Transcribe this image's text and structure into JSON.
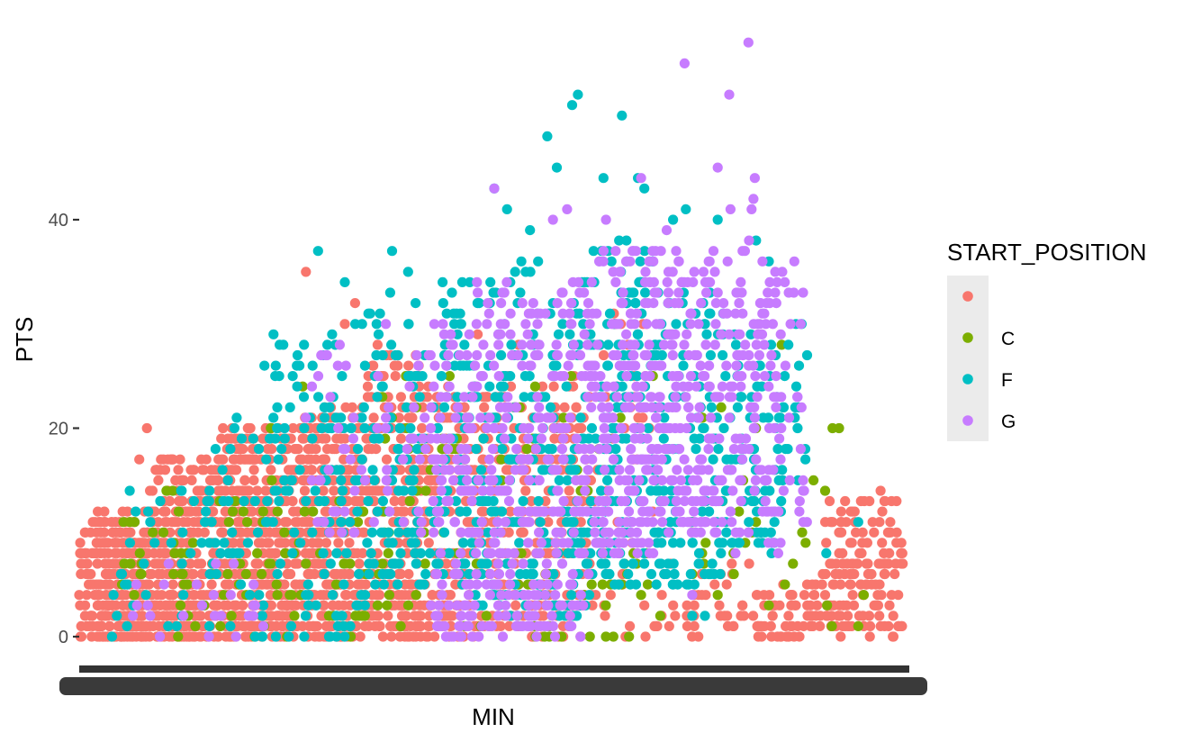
{
  "chart_data": {
    "type": "scatter",
    "xlabel": "MIN",
    "ylabel": "PTS",
    "x_axis_note": "categorical axis; overlapping tick labels render as a solid dark band",
    "y_ticks": [
      0,
      20,
      40
    ],
    "ylim": [
      -1,
      57
    ],
    "grid": false,
    "legend": {
      "title": "START_POSITION",
      "placement": "right",
      "entries": [
        {
          "label": "",
          "color": "#F8766D"
        },
        {
          "label": "C",
          "color": "#7CAE00"
        },
        {
          "label": "F",
          "color": "#00BFC4"
        },
        {
          "label": "G",
          "color": "#C77CFF"
        }
      ]
    },
    "series": [
      {
        "name": "",
        "color": "#F8766D",
        "clusters": [
          {
            "x": [
              0,
              10
            ],
            "y": [
              0,
              12
            ],
            "n": 280
          },
          {
            "x": [
              10,
              22
            ],
            "y": [
              0,
              17
            ],
            "n": 320
          },
          {
            "x": [
              22,
              35
            ],
            "y": [
              0,
              20
            ],
            "n": 420
          },
          {
            "x": [
              35,
              45
            ],
            "y": [
              0,
              22
            ],
            "n": 320
          },
          {
            "x": [
              45,
              54
            ],
            "y": [
              0,
              28
            ],
            "n": 220
          },
          {
            "x": [
              54,
              62
            ],
            "y": [
              0,
              24
            ],
            "n": 150
          },
          {
            "x": [
              62,
              72
            ],
            "y": [
              0,
              25
            ],
            "n": 140
          },
          {
            "x": [
              72,
              80
            ],
            "y": [
              0,
              25
            ],
            "n": 110
          },
          {
            "x": [
              80,
              91
            ],
            "y": [
              0,
              32
            ],
            "n": 50
          },
          {
            "x": [
              91,
              106
            ],
            "y": [
              0,
              7
            ],
            "n": 40
          },
          {
            "x": [
              106,
              116
            ],
            "y": [
              0,
              5
            ],
            "n": 60
          },
          {
            "x": [
              116,
              129
            ],
            "y": [
              0,
              13
            ],
            "n": 150
          }
        ],
        "points": [
          [
            10.6,
            20
          ],
          [
            9.4,
            17
          ],
          [
            35.5,
            35
          ],
          [
            43.2,
            32
          ],
          [
            41.6,
            30
          ],
          [
            62.4,
            29
          ],
          [
            74.5,
            16
          ],
          [
            74.0,
            14
          ],
          [
            69.6,
            2
          ],
          [
            68.8,
            28
          ],
          [
            119.0,
            10
          ],
          [
            125.5,
            14
          ],
          [
            128.0,
            13
          ],
          [
            122.7,
            10
          ],
          [
            121.0,
            9
          ]
        ]
      },
      {
        "name": "C",
        "color": "#7CAE00",
        "clusters": [
          {
            "x": [
              5,
              45
            ],
            "y": [
              0,
              15
            ],
            "n": 90
          },
          {
            "x": [
              45,
              90
            ],
            "y": [
              0,
              25
            ],
            "n": 100
          },
          {
            "x": [
              95,
              106
            ],
            "y": [
              5,
              22
            ],
            "n": 20
          },
          {
            "x": [
              110,
              128
            ],
            "y": [
              1,
              20
            ],
            "n": 10
          }
        ],
        "points": [
          [
            30.0,
            20
          ],
          [
            35.0,
            24
          ],
          [
            91.0,
            2
          ],
          [
            100.0,
            4
          ],
          [
            110.0,
            28
          ],
          [
            108.0,
            3
          ],
          [
            119.0,
            20
          ],
          [
            122.0,
            1
          ],
          [
            88.0,
            4
          ],
          [
            58.0,
            25
          ]
        ]
      },
      {
        "name": "F",
        "color": "#00BFC4",
        "clusters": [
          {
            "x": [
              5,
              30
            ],
            "y": [
              0,
              15
            ],
            "n": 50
          },
          {
            "x": [
              20,
              30
            ],
            "y": [
              5,
              22
            ],
            "n": 30
          },
          {
            "x": [
              30,
              45
            ],
            "y": [
              0,
              30
            ],
            "n": 120
          },
          {
            "x": [
              45,
              62
            ],
            "y": [
              5,
              34
            ],
            "n": 180
          },
          {
            "x": [
              62,
              80
            ],
            "y": [
              2,
              36
            ],
            "n": 230
          },
          {
            "x": [
              80,
              90
            ],
            "y": [
              5,
              38
            ],
            "n": 140
          },
          {
            "x": [
              90,
              102
            ],
            "y": [
              5,
              34
            ],
            "n": 140
          },
          {
            "x": [
              102,
              110
            ],
            "y": [
              8,
              30
            ],
            "n": 70
          },
          {
            "x": [
              110,
              114
            ],
            "y": [
              15,
              30
            ],
            "n": 20
          }
        ],
        "points": [
          [
            29.0,
            26
          ],
          [
            37.4,
            37
          ],
          [
            38.2,
            27
          ],
          [
            41.6,
            34
          ],
          [
            44.3,
            30
          ],
          [
            49.0,
            37
          ],
          [
            51.5,
            35
          ],
          [
            65.0,
            43
          ],
          [
            67.0,
            41
          ],
          [
            70.6,
            39
          ],
          [
            73.3,
            48
          ],
          [
            74.8,
            45
          ],
          [
            77.2,
            51
          ],
          [
            78.1,
            52
          ],
          [
            82.1,
            44
          ],
          [
            85.0,
            50
          ],
          [
            87.5,
            44
          ],
          [
            88.5,
            43
          ],
          [
            93.0,
            40
          ],
          [
            95.0,
            41
          ],
          [
            100.0,
            40
          ],
          [
            106.0,
            38
          ],
          [
            108.0,
            36
          ],
          [
            117.0,
            8
          ],
          [
            122.0,
            11
          ],
          [
            98.0,
            2
          ],
          [
            96.0,
            2
          ]
        ]
      },
      {
        "name": "G",
        "color": "#C77CFF",
        "clusters": [
          {
            "x": [
              8,
              30
            ],
            "y": [
              0,
              8
            ],
            "n": 25
          },
          {
            "x": [
              35,
              55
            ],
            "y": [
              10,
              30
            ],
            "n": 60
          },
          {
            "x": [
              55,
              62
            ],
            "y": [
              0,
              30
            ],
            "n": 120
          },
          {
            "x": [
              62,
              80
            ],
            "y": [
              0,
              34
            ],
            "n": 300
          },
          {
            "x": [
              80,
              90
            ],
            "y": [
              8,
              37
            ],
            "n": 200
          },
          {
            "x": [
              90,
              102
            ],
            "y": [
              10,
              37
            ],
            "n": 200
          },
          {
            "x": [
              102,
              110
            ],
            "y": [
              8,
              37
            ],
            "n": 110
          },
          {
            "x": [
              110,
              114
            ],
            "y": [
              10,
              36
            ],
            "n": 20
          }
        ],
        "points": [
          [
            65.0,
            43
          ],
          [
            74.2,
            40
          ],
          [
            76.4,
            41
          ],
          [
            82.5,
            40
          ],
          [
            84.0,
            37
          ],
          [
            86.8,
            37
          ],
          [
            88.0,
            44
          ],
          [
            92.0,
            39
          ],
          [
            94.8,
            55
          ],
          [
            100.0,
            45
          ],
          [
            101.8,
            52
          ],
          [
            102.0,
            41
          ],
          [
            104.8,
            57
          ],
          [
            105.8,
            44
          ],
          [
            105.6,
            42
          ],
          [
            105.3,
            41
          ],
          [
            104.9,
            38
          ],
          [
            112.0,
            36
          ],
          [
            113.0,
            18
          ],
          [
            113.0,
            30
          ],
          [
            96.0,
            4
          ]
        ]
      }
    ]
  }
}
